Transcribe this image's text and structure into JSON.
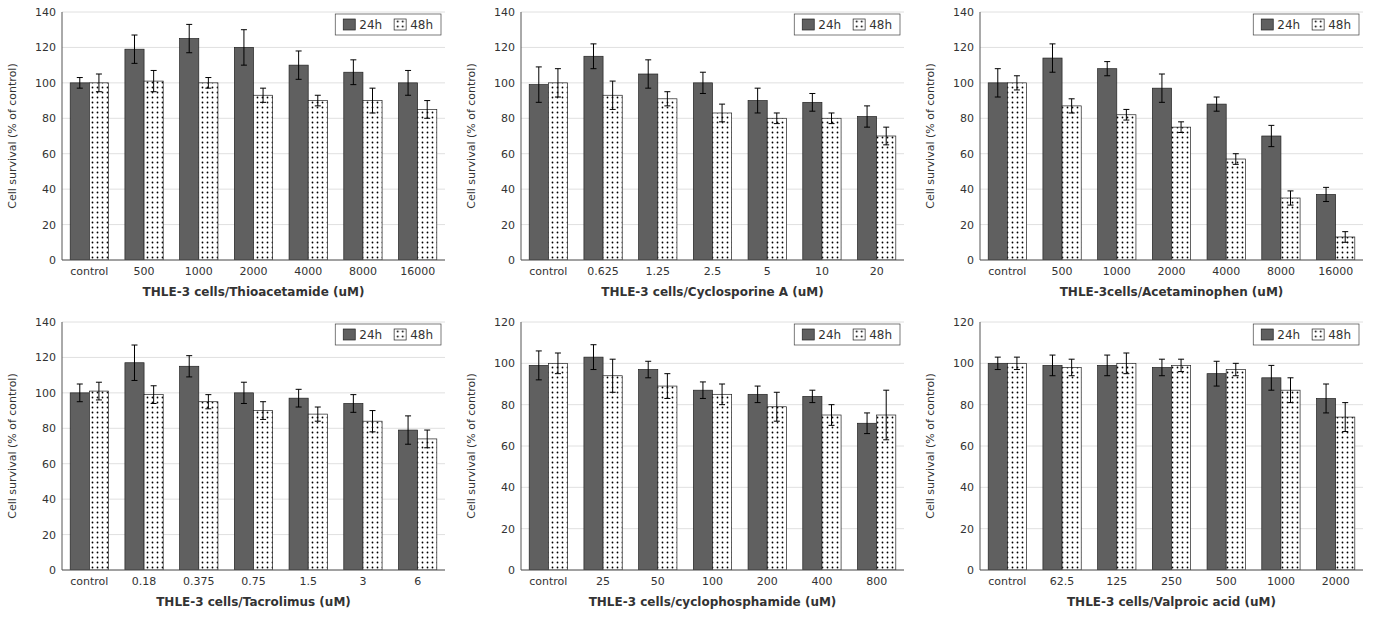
{
  "chart_data": [
    {
      "type": "bar",
      "xlabel": "THLE-3 cells/Thioacetamide (uM)",
      "ylabel": "Cell survival (% of control)",
      "categories": [
        "control",
        "500",
        "1000",
        "2000",
        "4000",
        "8000",
        "16000"
      ],
      "series": [
        {
          "name": "24h",
          "color": "#606060",
          "values": [
            100,
            119,
            125,
            120,
            110,
            106,
            100
          ],
          "errors": [
            3,
            8,
            8,
            10,
            8,
            7,
            7
          ]
        },
        {
          "name": "48h",
          "color": "#ffffff",
          "values": [
            100,
            101,
            100,
            93,
            90,
            90,
            85
          ],
          "errors": [
            5,
            6,
            3,
            4,
            3,
            7,
            5
          ]
        }
      ],
      "ylim": [
        0,
        140
      ],
      "yticks": [
        0,
        20,
        40,
        60,
        80,
        100,
        120,
        140
      ],
      "grid": true,
      "legend": "upper right"
    },
    {
      "type": "bar",
      "xlabel": "THLE-3 cells/Cyclosporine A (uM)",
      "ylabel": "Cell survival (% of control)",
      "categories": [
        "control",
        "0.625",
        "1.25",
        "2.5",
        "5",
        "10",
        "20"
      ],
      "series": [
        {
          "name": "24h",
          "color": "#606060",
          "values": [
            99,
            115,
            105,
            100,
            90,
            89,
            81
          ],
          "errors": [
            10,
            7,
            8,
            6,
            7,
            5,
            6
          ]
        },
        {
          "name": "48h",
          "color": "#ffffff",
          "values": [
            100,
            93,
            91,
            83,
            80,
            80,
            70
          ],
          "errors": [
            8,
            8,
            4,
            5,
            3,
            3,
            5
          ]
        }
      ],
      "ylim": [
        0,
        140
      ],
      "yticks": [
        0,
        20,
        40,
        60,
        80,
        100,
        120,
        140
      ],
      "grid": true,
      "legend": "upper right"
    },
    {
      "type": "bar",
      "xlabel": "THLE-3cells/Acetaminophen (uM)",
      "ylabel": "Cell survival (% of control)",
      "categories": [
        "control",
        "500",
        "1000",
        "2000",
        "4000",
        "8000",
        "16000"
      ],
      "series": [
        {
          "name": "24h",
          "color": "#606060",
          "values": [
            100,
            114,
            108,
            97,
            88,
            70,
            37
          ],
          "errors": [
            8,
            8,
            4,
            8,
            4,
            6,
            4
          ]
        },
        {
          "name": "48h",
          "color": "#ffffff",
          "values": [
            100,
            87,
            82,
            75,
            57,
            35,
            13
          ],
          "errors": [
            4,
            4,
            3,
            3,
            3,
            4,
            3
          ]
        }
      ],
      "ylim": [
        0,
        140
      ],
      "yticks": [
        0,
        20,
        40,
        60,
        80,
        100,
        120,
        140
      ],
      "grid": true,
      "legend": "upper right"
    },
    {
      "type": "bar",
      "xlabel": "THLE-3 cells/Tacrolimus (uM)",
      "ylabel": "Cell survival (% of control)",
      "categories": [
        "control",
        "0.18",
        "0.375",
        "0.75",
        "1.5",
        "3",
        "6"
      ],
      "series": [
        {
          "name": "24h",
          "color": "#606060",
          "values": [
            100,
            117,
            115,
            100,
            97,
            94,
            79
          ],
          "errors": [
            5,
            10,
            6,
            6,
            5,
            5,
            8
          ]
        },
        {
          "name": "48h",
          "color": "#ffffff",
          "values": [
            101,
            99,
            95,
            90,
            88,
            84,
            74
          ],
          "errors": [
            5,
            5,
            4,
            5,
            4,
            6,
            5
          ]
        }
      ],
      "ylim": [
        0,
        140
      ],
      "yticks": [
        0,
        20,
        40,
        60,
        80,
        100,
        120,
        140
      ],
      "grid": true,
      "legend": "upper right"
    },
    {
      "type": "bar",
      "xlabel": "THLE-3 cells/cyclophosphamide (uM)",
      "ylabel": "Cell survival (% of control)",
      "categories": [
        "control",
        "25",
        "50",
        "100",
        "200",
        "400",
        "800"
      ],
      "series": [
        {
          "name": "24h",
          "color": "#606060",
          "values": [
            99,
            103,
            97,
            87,
            85,
            84,
            71
          ],
          "errors": [
            7,
            6,
            4,
            4,
            4,
            3,
            5
          ]
        },
        {
          "name": "48h",
          "color": "#ffffff",
          "values": [
            100,
            94,
            89,
            85,
            79,
            75,
            75
          ],
          "errors": [
            5,
            8,
            6,
            5,
            7,
            5,
            12
          ]
        }
      ],
      "ylim": [
        0,
        120
      ],
      "yticks": [
        0,
        20,
        40,
        60,
        80,
        100,
        120
      ],
      "grid": true,
      "legend": "upper right"
    },
    {
      "type": "bar",
      "xlabel": "THLE-3 cells/Valproic acid (uM)",
      "ylabel": "Cell survival (% of control)",
      "categories": [
        "control",
        "62.5",
        "125",
        "250",
        "500",
        "1000",
        "2000"
      ],
      "series": [
        {
          "name": "24h",
          "color": "#606060",
          "values": [
            100,
            99,
            99,
            98,
            95,
            93,
            83
          ],
          "errors": [
            3,
            5,
            5,
            4,
            6,
            6,
            7
          ]
        },
        {
          "name": "48h",
          "color": "#ffffff",
          "values": [
            100,
            98,
            100,
            99,
            97,
            87,
            74
          ],
          "errors": [
            3,
            4,
            5,
            3,
            3,
            6,
            7
          ]
        }
      ],
      "ylim": [
        0,
        120
      ],
      "yticks": [
        0,
        20,
        40,
        60,
        80,
        100,
        120
      ],
      "grid": true,
      "legend": "upper right"
    }
  ]
}
